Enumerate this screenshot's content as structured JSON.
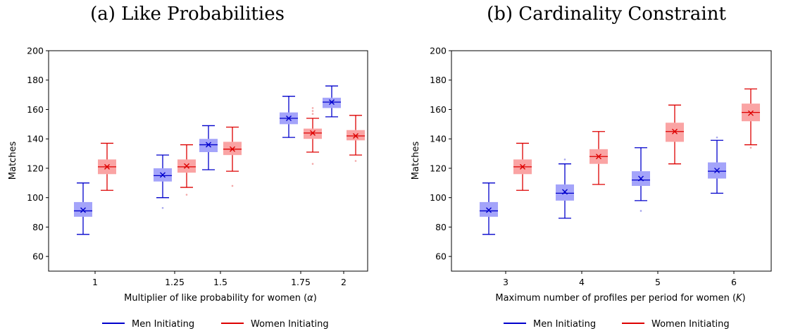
{
  "chart_data": [
    {
      "type": "box",
      "title": "(a) Like Probabilities",
      "xlabel_text": "Multiplier of like probability for women (",
      "xlabel_symbol": "α",
      "xlabel_suffix": ")",
      "ylabel": "Matches",
      "ylim": [
        50,
        200
      ],
      "yticks": [
        60,
        80,
        100,
        120,
        140,
        160,
        180,
        200
      ],
      "categories": [
        "1",
        "1.25",
        "1.5",
        "1.75",
        "2"
      ],
      "legend_position": "bottom",
      "series": [
        {
          "name": "Men Initiating",
          "color": "#0000cc",
          "boxes": [
            {
              "whisker_low": 75,
              "q1": 87,
              "median": 91,
              "mean": 91.5,
              "q3": 97,
              "whisker_high": 110,
              "outliers": []
            },
            {
              "whisker_low": 100,
              "q1": 111,
              "median": 115,
              "mean": 115.5,
              "q3": 120,
              "whisker_high": 129,
              "outliers": [
                93
              ]
            },
            {
              "whisker_low": 119,
              "q1": 131,
              "median": 136,
              "mean": 136,
              "q3": 140,
              "whisker_high": 149,
              "outliers": []
            },
            {
              "whisker_low": 141,
              "q1": 150,
              "median": 154,
              "mean": 154,
              "q3": 158,
              "whisker_high": 169,
              "outliers": []
            },
            {
              "whisker_low": 155,
              "q1": 161,
              "median": 165,
              "mean": 165,
              "q3": 168,
              "whisker_high": 176,
              "outliers": []
            }
          ]
        },
        {
          "name": "Women Initiating",
          "color": "#dd0000",
          "boxes": [
            {
              "whisker_low": 105,
              "q1": 116,
              "median": 121,
              "mean": 121,
              "q3": 126,
              "whisker_high": 137,
              "outliers": []
            },
            {
              "whisker_low": 107,
              "q1": 117,
              "median": 121,
              "mean": 121.5,
              "q3": 126,
              "whisker_high": 136,
              "outliers": [
                102
              ]
            },
            {
              "whisker_low": 118,
              "q1": 129,
              "median": 133,
              "mean": 133,
              "q3": 138,
              "whisker_high": 148,
              "outliers": [
                108
              ]
            },
            {
              "whisker_low": 131,
              "q1": 140,
              "median": 144,
              "mean": 144,
              "q3": 147,
              "whisker_high": 154,
              "outliers": [
                123,
                157,
                159,
                161
              ]
            },
            {
              "whisker_low": 129,
              "q1": 139,
              "median": 142,
              "mean": 142,
              "q3": 146,
              "whisker_high": 156,
              "outliers": [
                125
              ]
            }
          ]
        }
      ]
    },
    {
      "type": "box",
      "title": "(b) Cardinality Constraint",
      "xlabel_text": "Maximum number of profiles per period for women (",
      "xlabel_symbol": "K",
      "xlabel_suffix": ")",
      "ylabel": "Matches",
      "ylim": [
        50,
        200
      ],
      "yticks": [
        60,
        80,
        100,
        120,
        140,
        160,
        180,
        200
      ],
      "categories": [
        "3",
        "4",
        "5",
        "6"
      ],
      "legend_position": "bottom",
      "series": [
        {
          "name": "Men Initiating",
          "color": "#0000cc",
          "boxes": [
            {
              "whisker_low": 75,
              "q1": 87,
              "median": 91,
              "mean": 91.5,
              "q3": 97,
              "whisker_high": 110,
              "outliers": []
            },
            {
              "whisker_low": 86,
              "q1": 98,
              "median": 103,
              "mean": 104,
              "q3": 109,
              "whisker_high": 123,
              "outliers": [
                126
              ]
            },
            {
              "whisker_low": 98,
              "q1": 108,
              "median": 112,
              "mean": 113,
              "q3": 118,
              "whisker_high": 134,
              "outliers": [
                91
              ]
            },
            {
              "whisker_low": 103,
              "q1": 113,
              "median": 118,
              "mean": 118.5,
              "q3": 124,
              "whisker_high": 139,
              "outliers": [
                141
              ]
            }
          ]
        },
        {
          "name": "Women Initiating",
          "color": "#dd0000",
          "boxes": [
            {
              "whisker_low": 105,
              "q1": 116,
              "median": 121,
              "mean": 121,
              "q3": 126,
              "whisker_high": 137,
              "outliers": []
            },
            {
              "whisker_low": 109,
              "q1": 123,
              "median": 128,
              "mean": 128,
              "q3": 133,
              "whisker_high": 145,
              "outliers": []
            },
            {
              "whisker_low": 123,
              "q1": 138,
              "median": 145,
              "mean": 145,
              "q3": 151,
              "whisker_high": 163,
              "outliers": []
            },
            {
              "whisker_low": 136,
              "q1": 152,
              "median": 158,
              "mean": 157.5,
              "q3": 164,
              "whisker_high": 174,
              "outliers": [
                134
              ]
            }
          ]
        }
      ]
    }
  ]
}
